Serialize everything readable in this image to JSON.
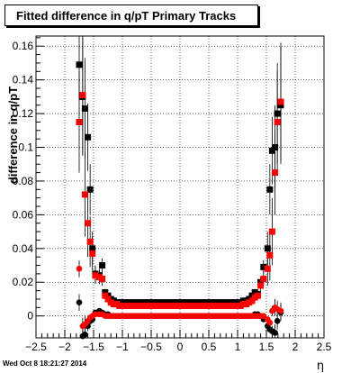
{
  "header": {
    "title": "Fitted difference in q/pT  Primary Tracks"
  },
  "footer": {
    "timestamp": "Wed Oct  8 18:21:27 2014"
  },
  "colors": {
    "series_black": "#000000",
    "series_red": "#ff0000",
    "grid": "#000000"
  },
  "chart_data": {
    "type": "scatter",
    "title": "Fitted difference in q/pT  Primary Tracks",
    "xlabel": "η",
    "ylabel": "difference in q/pT",
    "xlim": [
      -2.5,
      2.5
    ],
    "ylim": [
      -0.013,
      0.166
    ],
    "x_ticks": [
      -2.5,
      -2,
      -1.5,
      -1,
      -0.5,
      0,
      0.5,
      1,
      1.5,
      2,
      2.5
    ],
    "x_tick_labels": [
      "−2.5",
      "−2",
      "−1.5",
      "−1",
      "−0.5",
      "0",
      "0.5",
      "1",
      "1.5",
      "2",
      "2.5"
    ],
    "y_ticks": [
      0,
      0.02,
      0.04,
      0.06,
      0.08,
      0.1,
      0.12,
      0.14,
      0.16
    ],
    "y_tick_labels": [
      "0",
      "0.02",
      "0.04",
      "0.06",
      "0.08",
      "0.1",
      "0.12",
      "0.14",
      "0.16"
    ],
    "grid": true,
    "legend": "none",
    "series": [
      {
        "marker": "square",
        "color": "#000000",
        "x": [
          -1.75,
          -1.69,
          -1.65,
          -1.6,
          -1.56,
          -1.52,
          -1.47,
          -1.4,
          -1.35,
          -1.3,
          -1.25,
          -1.2,
          -1.15,
          -1.1,
          -1.05,
          -1.0,
          -0.95,
          -0.9,
          -0.85,
          -0.8,
          -0.75,
          -0.7,
          -0.65,
          -0.6,
          -0.55,
          -0.5,
          -0.45,
          -0.4,
          -0.35,
          -0.3,
          -0.25,
          -0.2,
          -0.15,
          -0.1,
          -0.05,
          0.0,
          0.05,
          0.1,
          0.15,
          0.2,
          0.25,
          0.3,
          0.35,
          0.4,
          0.45,
          0.5,
          0.55,
          0.6,
          0.65,
          0.7,
          0.75,
          0.8,
          0.85,
          0.9,
          0.95,
          1.0,
          1.05,
          1.1,
          1.15,
          1.2,
          1.25,
          1.3,
          1.35,
          1.4,
          1.45,
          1.52,
          1.56,
          1.6,
          1.65,
          1.69,
          1.75
        ],
        "y": [
          0.149,
          0.13,
          0.123,
          0.106,
          0.075,
          0.04,
          0.025,
          0.024,
          0.03,
          0.014,
          0.012,
          0.01,
          0.009,
          0.008,
          0.008,
          0.008,
          0.008,
          0.008,
          0.008,
          0.008,
          0.008,
          0.008,
          0.008,
          0.008,
          0.008,
          0.008,
          0.008,
          0.008,
          0.008,
          0.008,
          0.008,
          0.008,
          0.008,
          0.008,
          0.008,
          0.008,
          0.008,
          0.008,
          0.008,
          0.008,
          0.008,
          0.008,
          0.008,
          0.008,
          0.008,
          0.008,
          0.008,
          0.008,
          0.008,
          0.008,
          0.008,
          0.008,
          0.008,
          0.008,
          0.008,
          0.008,
          0.008,
          0.009,
          0.009,
          0.01,
          0.012,
          0.014,
          0.013,
          0.02,
          0.029,
          0.04,
          0.075,
          0.098,
          0.1,
          0.12,
          0.125
        ],
        "error": [
          0.02,
          0.035,
          0.03,
          0.02,
          0.015,
          0.01,
          0.005,
          0.004,
          0.004,
          0.002,
          0.001,
          0.001,
          0.001,
          0.001,
          0.001,
          0.001,
          0.001,
          0.001,
          0.001,
          0.001,
          0.001,
          0.001,
          0.001,
          0.001,
          0.001,
          0.001,
          0.001,
          0.001,
          0.001,
          0.001,
          0.001,
          0.001,
          0.001,
          0.001,
          0.001,
          0.001,
          0.001,
          0.001,
          0.001,
          0.001,
          0.001,
          0.001,
          0.001,
          0.001,
          0.001,
          0.001,
          0.001,
          0.001,
          0.001,
          0.001,
          0.001,
          0.001,
          0.001,
          0.001,
          0.001,
          0.001,
          0.001,
          0.001,
          0.001,
          0.001,
          0.002,
          0.002,
          0.002,
          0.003,
          0.004,
          0.01,
          0.015,
          0.02,
          0.025,
          0.03,
          0.035
        ]
      },
      {
        "marker": "square",
        "color": "#ff0000",
        "x": [
          -1.75,
          -1.69,
          -1.65,
          -1.6,
          -1.56,
          -1.52,
          -1.47,
          -1.4,
          -1.35,
          -1.3,
          -1.25,
          -1.2,
          -1.15,
          -1.1,
          -1.05,
          -1.0,
          -0.95,
          -0.9,
          -0.85,
          -0.8,
          -0.75,
          -0.7,
          -0.65,
          -0.6,
          -0.55,
          -0.5,
          -0.45,
          -0.4,
          -0.35,
          -0.3,
          -0.25,
          -0.2,
          -0.15,
          -0.1,
          -0.05,
          0.0,
          0.05,
          0.1,
          0.15,
          0.2,
          0.25,
          0.3,
          0.35,
          0.4,
          0.45,
          0.5,
          0.55,
          0.6,
          0.65,
          0.7,
          0.75,
          0.8,
          0.85,
          0.9,
          0.95,
          1.0,
          1.05,
          1.1,
          1.15,
          1.2,
          1.25,
          1.3,
          1.35,
          1.4,
          1.45,
          1.52,
          1.56,
          1.6,
          1.65,
          1.69,
          1.75
        ],
        "y": [
          0.115,
          0.131,
          0.072,
          0.055,
          0.044,
          0.037,
          0.024,
          0.023,
          0.022,
          0.012,
          0.01,
          0.008,
          0.007,
          0.007,
          0.006,
          0.006,
          0.006,
          0.006,
          0.006,
          0.006,
          0.006,
          0.006,
          0.006,
          0.006,
          0.006,
          0.006,
          0.006,
          0.006,
          0.006,
          0.006,
          0.006,
          0.006,
          0.006,
          0.006,
          0.006,
          0.006,
          0.006,
          0.006,
          0.006,
          0.006,
          0.006,
          0.006,
          0.006,
          0.006,
          0.006,
          0.006,
          0.006,
          0.006,
          0.006,
          0.006,
          0.006,
          0.006,
          0.006,
          0.006,
          0.006,
          0.006,
          0.006,
          0.007,
          0.007,
          0.008,
          0.009,
          0.011,
          0.012,
          0.018,
          0.022,
          0.028,
          0.036,
          0.05,
          0.085,
          0.115,
          0.127
        ],
        "error": [
          0.03,
          0.035,
          0.025,
          0.02,
          0.015,
          0.01,
          0.005,
          0.004,
          0.004,
          0.002,
          0.001,
          0.001,
          0.001,
          0.001,
          0.001,
          0.001,
          0.001,
          0.001,
          0.001,
          0.001,
          0.001,
          0.001,
          0.001,
          0.001,
          0.001,
          0.001,
          0.001,
          0.001,
          0.001,
          0.001,
          0.001,
          0.001,
          0.001,
          0.001,
          0.001,
          0.001,
          0.001,
          0.001,
          0.001,
          0.001,
          0.001,
          0.001,
          0.001,
          0.001,
          0.001,
          0.001,
          0.001,
          0.001,
          0.001,
          0.001,
          0.001,
          0.001,
          0.001,
          0.001,
          0.001,
          0.001,
          0.001,
          0.001,
          0.001,
          0.001,
          0.002,
          0.002,
          0.002,
          0.003,
          0.004,
          0.01,
          0.015,
          0.02,
          0.025,
          0.03,
          0.035
        ]
      },
      {
        "marker": "circle",
        "color": "#000000",
        "x": [
          -1.75,
          -1.69,
          -1.65,
          -1.6,
          -1.56,
          -1.52,
          -1.47,
          -1.4,
          -1.35,
          -1.3,
          -1.25,
          -1.2,
          -1.15,
          -1.1,
          -1.05,
          -1.0,
          -0.95,
          -0.9,
          -0.85,
          -0.8,
          -0.75,
          -0.7,
          -0.65,
          -0.6,
          -0.55,
          -0.5,
          -0.45,
          -0.4,
          -0.35,
          -0.3,
          -0.25,
          -0.2,
          -0.15,
          -0.1,
          -0.05,
          0.0,
          0.05,
          0.1,
          0.15,
          0.2,
          0.25,
          0.3,
          0.35,
          0.4,
          0.45,
          0.5,
          0.55,
          0.6,
          0.65,
          0.7,
          0.75,
          0.8,
          0.85,
          0.9,
          0.95,
          1.0,
          1.05,
          1.1,
          1.15,
          1.2,
          1.25,
          1.3,
          1.35,
          1.4,
          1.45,
          1.52,
          1.56,
          1.6,
          1.65,
          1.69,
          1.75
        ],
        "y": [
          0.008,
          -0.012,
          -0.011,
          -0.006,
          -0.003,
          -0.002,
          0.002,
          0.003,
          0.002,
          0.001,
          0.001,
          0.0,
          0.0,
          0.0,
          0.0,
          0.0,
          0.0,
          0.0,
          0.0,
          0.0,
          0.0,
          0.0,
          0.0,
          0.0,
          0.0,
          0.0,
          0.0,
          0.0,
          0.0,
          0.0,
          0.0,
          0.0,
          0.0,
          0.0,
          0.0,
          0.0,
          0.0,
          0.0,
          0.0,
          0.0,
          0.0,
          0.0,
          0.0,
          0.0,
          0.0,
          0.0,
          0.0,
          0.0,
          0.0,
          0.0,
          0.0,
          0.0,
          0.0,
          0.0,
          0.0,
          0.0,
          0.0,
          0.0,
          0.0,
          0.0,
          0.0,
          0.001,
          0.001,
          0.0,
          -0.002,
          -0.006,
          -0.008,
          -0.009,
          -0.01,
          -0.003,
          0.002
        ],
        "error": [
          0.005,
          0.005,
          0.005,
          0.003,
          0.002,
          0.001,
          0.001,
          0.001,
          0.001,
          0.001,
          0.0005,
          0.0005,
          0.0005,
          0.0005,
          0.0005,
          0.0005,
          0.0005,
          0.0005,
          0.0005,
          0.0005,
          0.0005,
          0.0005,
          0.0005,
          0.0005,
          0.0005,
          0.0005,
          0.0005,
          0.0005,
          0.0005,
          0.0005,
          0.0005,
          0.0005,
          0.0005,
          0.0005,
          0.0005,
          0.0005,
          0.0005,
          0.0005,
          0.0005,
          0.0005,
          0.0005,
          0.0005,
          0.0005,
          0.0005,
          0.0005,
          0.0005,
          0.0005,
          0.0005,
          0.0005,
          0.0005,
          0.0005,
          0.0005,
          0.0005,
          0.0005,
          0.0005,
          0.0005,
          0.0005,
          0.0005,
          0.0005,
          0.0005,
          0.0005,
          0.001,
          0.001,
          0.001,
          0.001,
          0.001,
          0.002,
          0.003,
          0.005,
          0.005,
          0.005
        ]
      },
      {
        "marker": "circle",
        "color": "#ff0000",
        "x": [
          -1.75,
          -1.69,
          -1.65,
          -1.6,
          -1.56,
          -1.52,
          -1.47,
          -1.4,
          -1.35,
          -1.3,
          -1.25,
          -1.2,
          -1.15,
          -1.1,
          -1.05,
          -1.0,
          -0.95,
          -0.9,
          -0.85,
          -0.8,
          -0.75,
          -0.7,
          -0.65,
          -0.6,
          -0.55,
          -0.5,
          -0.45,
          -0.4,
          -0.35,
          -0.3,
          -0.25,
          -0.2,
          -0.15,
          -0.1,
          -0.05,
          0.0,
          0.05,
          0.1,
          0.15,
          0.2,
          0.25,
          0.3,
          0.35,
          0.4,
          0.45,
          0.5,
          0.55,
          0.6,
          0.65,
          0.7,
          0.75,
          0.8,
          0.85,
          0.9,
          0.95,
          1.0,
          1.05,
          1.1,
          1.15,
          1.2,
          1.25,
          1.3,
          1.35,
          1.4,
          1.45,
          1.52,
          1.56,
          1.6,
          1.65,
          1.69,
          1.75
        ],
        "y": [
          0.028,
          -0.006,
          -0.005,
          -0.003,
          -0.001,
          0.0,
          0.001,
          0.001,
          0.001,
          0.0,
          0.0,
          0.0,
          0.0,
          0.0,
          0.0,
          0.0,
          0.0,
          0.0,
          0.0,
          0.0,
          0.0,
          0.0,
          0.0,
          0.0,
          0.0,
          0.0,
          0.0,
          0.0,
          0.0,
          0.0,
          0.0,
          0.0,
          0.0,
          0.0,
          0.0,
          0.0,
          0.0,
          0.0,
          0.0,
          0.0,
          0.0,
          0.0,
          0.0,
          0.0,
          0.0,
          0.0,
          0.0,
          0.0,
          0.0,
          0.0,
          0.0,
          0.0,
          0.0,
          0.0,
          0.0,
          0.0,
          0.0,
          0.0,
          0.0,
          0.0,
          0.0,
          0.0,
          0.0,
          0.0,
          0.0,
          -0.002,
          -0.004,
          0.003,
          0.005,
          0.004,
          0.003
        ],
        "error": [
          0.005,
          0.005,
          0.005,
          0.003,
          0.002,
          0.001,
          0.001,
          0.001,
          0.001,
          0.001,
          0.0005,
          0.0005,
          0.0005,
          0.0005,
          0.0005,
          0.0005,
          0.0005,
          0.0005,
          0.0005,
          0.0005,
          0.0005,
          0.0005,
          0.0005,
          0.0005,
          0.0005,
          0.0005,
          0.0005,
          0.0005,
          0.0005,
          0.0005,
          0.0005,
          0.0005,
          0.0005,
          0.0005,
          0.0005,
          0.0005,
          0.0005,
          0.0005,
          0.0005,
          0.0005,
          0.0005,
          0.0005,
          0.0005,
          0.0005,
          0.0005,
          0.0005,
          0.0005,
          0.0005,
          0.0005,
          0.0005,
          0.0005,
          0.0005,
          0.0005,
          0.0005,
          0.0005,
          0.0005,
          0.0005,
          0.0005,
          0.0005,
          0.0005,
          0.0005,
          0.001,
          0.001,
          0.001,
          0.001,
          0.001,
          0.002,
          0.003,
          0.005,
          0.005,
          0.005
        ]
      }
    ]
  }
}
